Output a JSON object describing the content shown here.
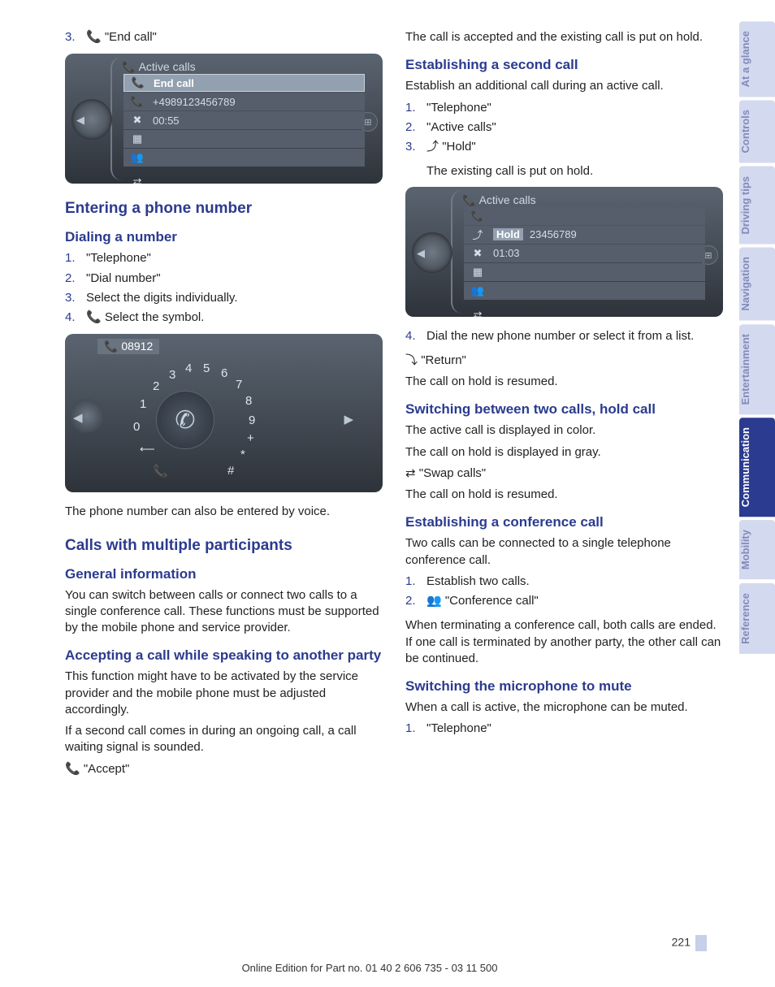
{
  "page_number": "221",
  "footer_text": "Online Edition for Part no. 01 40 2 606 735 - 03 11 500",
  "sidebar_tabs": [
    {
      "label": "At a glance",
      "active": false
    },
    {
      "label": "Controls",
      "active": false
    },
    {
      "label": "Driving tips",
      "active": false
    },
    {
      "label": "Navigation",
      "active": false
    },
    {
      "label": "Entertainment",
      "active": false
    },
    {
      "label": "Communication",
      "active": true
    },
    {
      "label": "Mobility",
      "active": false
    },
    {
      "label": "Reference",
      "active": false
    }
  ],
  "colors": {
    "heading": "#2b3b8f",
    "list_num": "#2b3b8f",
    "tab_active_bg": "#2b3b8f",
    "tab_active_fg": "#ffffff",
    "tab_inactive_bg": "#d3d9ef",
    "tab_inactive_fg": "#818bb9",
    "screenshot_bg_top": "#5a6470",
    "screenshot_bg_bottom": "#2e333a"
  },
  "left": {
    "end_call_item": {
      "num": "3.",
      "icon": "📞",
      "text": "\"End call\""
    },
    "screenshot1": {
      "title": "Active calls",
      "highlight": "End call",
      "line2": "+4989123456789",
      "line3": "00:55"
    },
    "h_entering": "Entering a phone number",
    "h_dialing": "Dialing a number",
    "dial_steps": [
      {
        "num": "1.",
        "text": "\"Telephone\""
      },
      {
        "num": "2.",
        "text": "\"Dial number\""
      },
      {
        "num": "3.",
        "text": "Select the digits individually."
      },
      {
        "num": "4.",
        "icon": "📞",
        "text": "Select the symbol."
      }
    ],
    "dialpad": {
      "entered": "08912",
      "keys": [
        "0",
        "1",
        "2",
        "3",
        "4",
        "5",
        "6",
        "7",
        "8",
        "9",
        "+",
        "*",
        "#"
      ]
    },
    "voice_note": "The phone number can also be entered by voice.",
    "h_multi": "Calls with multiple participants",
    "h_general": "General information",
    "general_text": "You can switch between calls or connect two calls to a single conference call. These functions must be supported by the mobile phone and service provider.",
    "h_accepting": "Accepting a call while speaking to another party",
    "accepting_p1": "This function might have to be activated by the service provider and the mobile phone must be adjusted accordingly.",
    "accepting_p2": "If a second call comes in during an ongoing call, a call waiting signal is sounded.",
    "accept_icon": "📞",
    "accept_text": "\"Accept\""
  },
  "right": {
    "p_hold": "The call is accepted and the existing call is put on hold.",
    "h_second": "Establishing a second call",
    "second_intro": "Establish an additional call during an active call.",
    "second_steps": [
      {
        "num": "1.",
        "text": "\"Telephone\""
      },
      {
        "num": "2.",
        "text": "\"Active calls\""
      },
      {
        "num": "3.",
        "icon": "⤴",
        "text": "\"Hold\""
      }
    ],
    "second_note": "The existing call is put on hold.",
    "screenshot2": {
      "title": "Active calls",
      "highlight": "Hold",
      "rest": "23456789",
      "line3": "01:03"
    },
    "second_steps2": [
      {
        "num": "4.",
        "text": "Dial the new phone number or select it from a list."
      }
    ],
    "return_icon": "⤵",
    "return_text": "\"Return\"",
    "return_after": "The call on hold is resumed.",
    "h_switch": "Switching between two calls, hold call",
    "switch_p1": "The active call is displayed in color.",
    "switch_p2": "The call on hold is displayed in gray.",
    "swap_icon": "⇄",
    "swap_text": "\"Swap calls\"",
    "swap_after": "The call on hold is resumed.",
    "h_conf": "Establishing a conference call",
    "conf_intro": "Two calls can be connected to a single telephone conference call.",
    "conf_steps": [
      {
        "num": "1.",
        "text": "Establish two calls."
      },
      {
        "num": "2.",
        "icon": "👥",
        "text": "\"Conference call\""
      }
    ],
    "conf_after": "When terminating a conference call, both calls are ended. If one call is terminated by another party, the other call can be continued.",
    "h_mute": "Switching the microphone to mute",
    "mute_intro": "When a call is active, the microphone can be muted.",
    "mute_steps": [
      {
        "num": "1.",
        "text": "\"Telephone\""
      }
    ]
  }
}
